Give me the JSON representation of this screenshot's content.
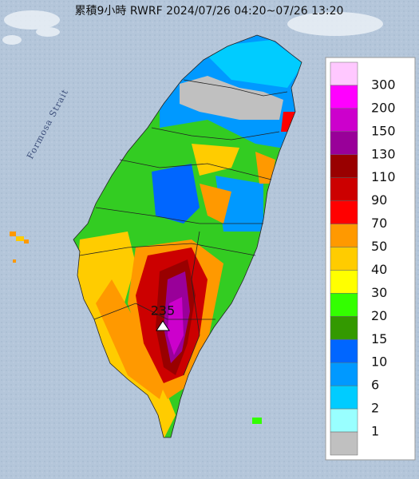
{
  "header": {
    "title": "累積9小時 RWRF 2024/07/26 04:20~07/26 13:20"
  },
  "map": {
    "sea_label": "Formosa Strait",
    "max_label": "235"
  },
  "legend": {
    "labels": [
      300,
      200,
      150,
      130,
      110,
      90,
      70,
      50,
      40,
      30,
      20,
      15,
      10,
      6,
      2,
      1
    ],
    "colors": [
      "#ffc8ff",
      "#ff00ff",
      "#cc00cc",
      "#990099",
      "#990000",
      "#cc0000",
      "#ff0000",
      "#ff9900",
      "#ffcc00",
      "#ffff00",
      "#33ff00",
      "#339900",
      "#0066ff",
      "#0099ff",
      "#00ccff",
      "#99ffff",
      "#c0c0c0"
    ]
  }
}
